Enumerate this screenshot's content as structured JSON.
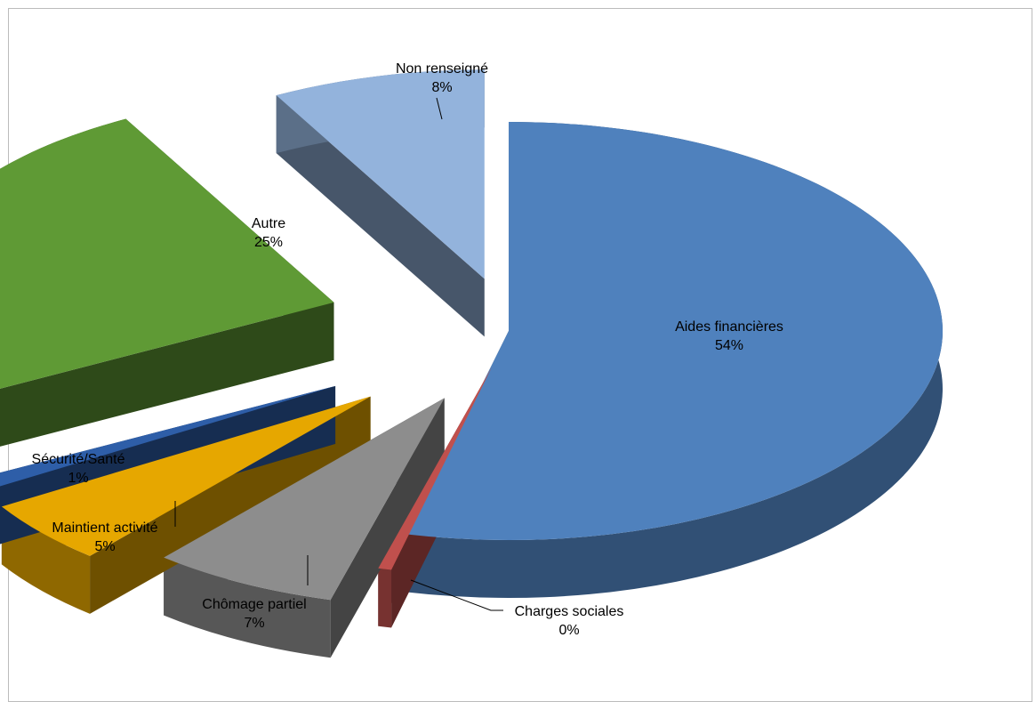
{
  "chart_data": {
    "type": "pie",
    "style": "3d-exploded",
    "title": "",
    "slices": [
      {
        "label": "Aides financières",
        "value": 54,
        "value_label": "54%",
        "color": "#4f81bd"
      },
      {
        "label": "Charges sociales",
        "value": 0,
        "value_label": "0%",
        "color": "#c0504d"
      },
      {
        "label": "Chômage partiel",
        "value": 7,
        "value_label": "7%",
        "color": "#8d8d8d"
      },
      {
        "label": "Maintient activité",
        "value": 5,
        "value_label": "5%",
        "color": "#e6a700"
      },
      {
        "label": "Sécurité/Santé",
        "value": 1,
        "value_label": "1%",
        "color": "#2e5ea8"
      },
      {
        "label": "Autre",
        "value": 25,
        "value_label": "25%",
        "color": "#5f9a35"
      },
      {
        "label": "Non renseigné",
        "value": 8,
        "value_label": "8%",
        "color": "#93b3dc"
      }
    ],
    "legend": "none"
  }
}
